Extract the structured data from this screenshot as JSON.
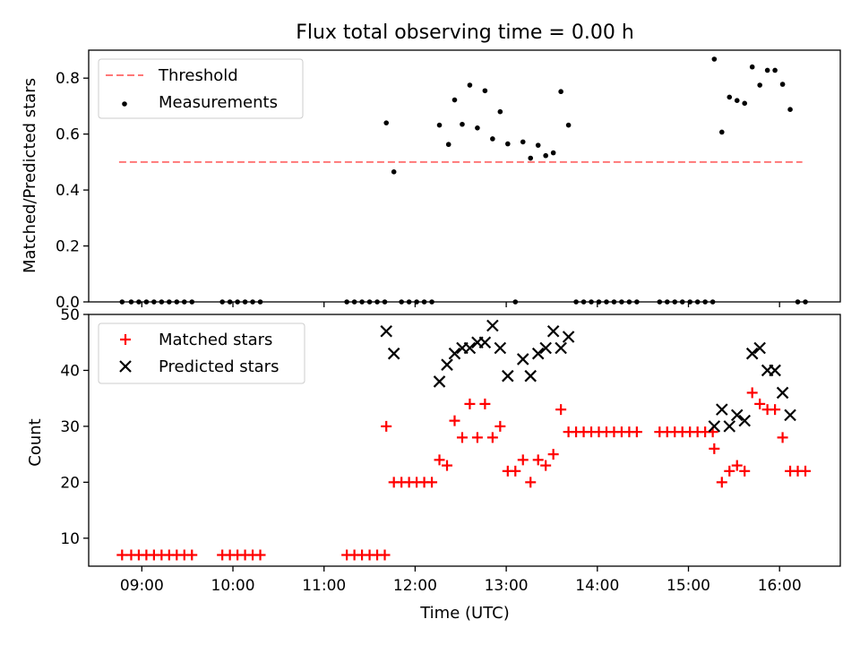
{
  "chart_data": [
    {
      "type": "scatter",
      "title": "Flux total observing time = 0.00 h",
      "ylabel": "Matched/Predicted stars",
      "xlabel": "",
      "ylim": [
        0.0,
        0.9
      ],
      "yticks": [
        "0.0",
        "0.2",
        "0.4",
        "0.6",
        "0.8"
      ],
      "legend_position": "upper-left",
      "threshold": {
        "name": "Threshold",
        "value": 0.5,
        "x_range": [
          "08:45",
          "16:15"
        ],
        "color": "#ff7777",
        "style": "dashed"
      },
      "series": [
        {
          "name": "Measurements",
          "color": "#000000",
          "marker": "dot",
          "points": [
            [
              "08:47",
              0
            ],
            [
              "08:53",
              0
            ],
            [
              "08:58",
              0
            ],
            [
              "09:03",
              0
            ],
            [
              "09:08",
              0
            ],
            [
              "09:13",
              0
            ],
            [
              "09:18",
              0
            ],
            [
              "09:23",
              0
            ],
            [
              "09:28",
              0
            ],
            [
              "09:33",
              0
            ],
            [
              "09:53",
              0
            ],
            [
              "09:58",
              0
            ],
            [
              "10:03",
              0
            ],
            [
              "10:08",
              0
            ],
            [
              "10:13",
              0
            ],
            [
              "10:18",
              0
            ],
            [
              "11:15",
              0
            ],
            [
              "11:20",
              0
            ],
            [
              "11:25",
              0
            ],
            [
              "11:30",
              0
            ],
            [
              "11:35",
              0
            ],
            [
              "11:40",
              0
            ],
            [
              "11:41",
              0.64
            ],
            [
              "11:46",
              0.465
            ],
            [
              "11:51",
              0
            ],
            [
              "11:56",
              0
            ],
            [
              "12:01",
              0
            ],
            [
              "12:06",
              0
            ],
            [
              "12:11",
              0
            ],
            [
              "12:16",
              0.632
            ],
            [
              "12:22",
              0.563
            ],
            [
              "12:26",
              0.722
            ],
            [
              "12:31",
              0.635
            ],
            [
              "12:36",
              0.775
            ],
            [
              "12:41",
              0.622
            ],
            [
              "12:46",
              0.755
            ],
            [
              "12:51",
              0.583
            ],
            [
              "12:56",
              0.68
            ],
            [
              "13:01",
              0.565
            ],
            [
              "13:06",
              0
            ],
            [
              "13:11",
              0.572
            ],
            [
              "13:16",
              0.514
            ],
            [
              "13:21",
              0.56
            ],
            [
              "13:26",
              0.523
            ],
            [
              "13:31",
              0.533
            ],
            [
              "13:36",
              0.752
            ],
            [
              "13:41",
              0.632
            ],
            [
              "13:46",
              0
            ],
            [
              "13:51",
              0
            ],
            [
              "13:56",
              0
            ],
            [
              "14:01",
              0
            ],
            [
              "14:06",
              0
            ],
            [
              "14:11",
              0
            ],
            [
              "14:16",
              0
            ],
            [
              "14:21",
              0
            ],
            [
              "14:26",
              0
            ],
            [
              "14:41",
              0
            ],
            [
              "14:46",
              0
            ],
            [
              "14:51",
              0
            ],
            [
              "14:56",
              0
            ],
            [
              "15:01",
              0
            ],
            [
              "15:06",
              0
            ],
            [
              "15:11",
              0
            ],
            [
              "15:16",
              0
            ],
            [
              "15:17",
              0.868
            ],
            [
              "15:22",
              0.607
            ],
            [
              "15:27",
              0.732
            ],
            [
              "15:32",
              0.72
            ],
            [
              "15:37",
              0.71
            ],
            [
              "15:42",
              0.84
            ],
            [
              "15:47",
              0.775
            ],
            [
              "15:52",
              0.828
            ],
            [
              "15:57",
              0.828
            ],
            [
              "16:02",
              0.778
            ],
            [
              "16:07",
              0.688
            ],
            [
              "16:12",
              0
            ],
            [
              "16:17",
              0
            ]
          ]
        }
      ]
    },
    {
      "type": "scatter",
      "title": "",
      "ylabel": "Count",
      "xlabel": "Time (UTC)",
      "ylim": [
        5,
        50
      ],
      "yticks": [
        "10",
        "20",
        "30",
        "40",
        "50"
      ],
      "xticks": [
        "09:00",
        "10:00",
        "11:00",
        "12:00",
        "13:00",
        "14:00",
        "15:00",
        "16:00"
      ],
      "xlim": [
        "08:25",
        "16:40"
      ],
      "legend_position": "upper-left",
      "series": [
        {
          "name": "Matched stars",
          "color": "#ff0000",
          "marker": "plus",
          "points": [
            [
              "08:47",
              7
            ],
            [
              "08:53",
              7
            ],
            [
              "08:58",
              7
            ],
            [
              "09:03",
              7
            ],
            [
              "09:08",
              7
            ],
            [
              "09:13",
              7
            ],
            [
              "09:18",
              7
            ],
            [
              "09:23",
              7
            ],
            [
              "09:28",
              7
            ],
            [
              "09:33",
              7
            ],
            [
              "09:53",
              7
            ],
            [
              "09:58",
              7
            ],
            [
              "10:03",
              7
            ],
            [
              "10:08",
              7
            ],
            [
              "10:13",
              7
            ],
            [
              "10:18",
              7
            ],
            [
              "11:15",
              7
            ],
            [
              "11:20",
              7
            ],
            [
              "11:25",
              7
            ],
            [
              "11:30",
              7
            ],
            [
              "11:35",
              7
            ],
            [
              "11:40",
              7
            ],
            [
              "11:41",
              30
            ],
            [
              "11:46",
              20
            ],
            [
              "11:51",
              20
            ],
            [
              "11:56",
              20
            ],
            [
              "12:01",
              20
            ],
            [
              "12:06",
              20
            ],
            [
              "12:11",
              20
            ],
            [
              "12:16",
              24
            ],
            [
              "12:21",
              23
            ],
            [
              "12:26",
              31
            ],
            [
              "12:31",
              28
            ],
            [
              "12:36",
              34
            ],
            [
              "12:41",
              28
            ],
            [
              "12:46",
              34
            ],
            [
              "12:51",
              28
            ],
            [
              "12:56",
              30
            ],
            [
              "13:01",
              22
            ],
            [
              "13:06",
              22
            ],
            [
              "13:11",
              24
            ],
            [
              "13:16",
              20
            ],
            [
              "13:21",
              24
            ],
            [
              "13:26",
              23
            ],
            [
              "13:31",
              25
            ],
            [
              "13:36",
              33
            ],
            [
              "13:41",
              29
            ],
            [
              "13:46",
              29
            ],
            [
              "13:51",
              29
            ],
            [
              "13:56",
              29
            ],
            [
              "14:01",
              29
            ],
            [
              "14:06",
              29
            ],
            [
              "14:11",
              29
            ],
            [
              "14:16",
              29
            ],
            [
              "14:21",
              29
            ],
            [
              "14:26",
              29
            ],
            [
              "14:41",
              29
            ],
            [
              "14:46",
              29
            ],
            [
              "14:51",
              29
            ],
            [
              "14:56",
              29
            ],
            [
              "15:01",
              29
            ],
            [
              "15:06",
              29
            ],
            [
              "15:11",
              29
            ],
            [
              "15:16",
              29
            ],
            [
              "15:17",
              26
            ],
            [
              "15:22",
              20
            ],
            [
              "15:27",
              22
            ],
            [
              "15:32",
              23
            ],
            [
              "15:37",
              22
            ],
            [
              "15:42",
              36
            ],
            [
              "15:47",
              34
            ],
            [
              "15:52",
              33
            ],
            [
              "15:57",
              33
            ],
            [
              "16:02",
              28
            ],
            [
              "16:07",
              22
            ],
            [
              "16:12",
              22
            ],
            [
              "16:17",
              22
            ]
          ]
        },
        {
          "name": "Predicted stars",
          "color": "#000000",
          "marker": "cross",
          "points": [
            [
              "11:41",
              47
            ],
            [
              "11:46",
              43
            ],
            [
              "12:16",
              38
            ],
            [
              "12:21",
              41
            ],
            [
              "12:26",
              43
            ],
            [
              "12:31",
              44
            ],
            [
              "12:36",
              44
            ],
            [
              "12:41",
              45
            ],
            [
              "12:46",
              45
            ],
            [
              "12:51",
              48
            ],
            [
              "12:56",
              44
            ],
            [
              "13:01",
              39
            ],
            [
              "13:11",
              42
            ],
            [
              "13:16",
              39
            ],
            [
              "13:21",
              43
            ],
            [
              "13:26",
              44
            ],
            [
              "13:31",
              47
            ],
            [
              "13:36",
              44
            ],
            [
              "13:41",
              46
            ],
            [
              "15:17",
              30
            ],
            [
              "15:22",
              33
            ],
            [
              "15:27",
              30
            ],
            [
              "15:32",
              32
            ],
            [
              "15:37",
              31
            ],
            [
              "15:42",
              43
            ],
            [
              "15:47",
              44
            ],
            [
              "15:52",
              40
            ],
            [
              "15:57",
              40
            ],
            [
              "16:02",
              36
            ],
            [
              "16:07",
              32
            ]
          ]
        }
      ]
    }
  ]
}
